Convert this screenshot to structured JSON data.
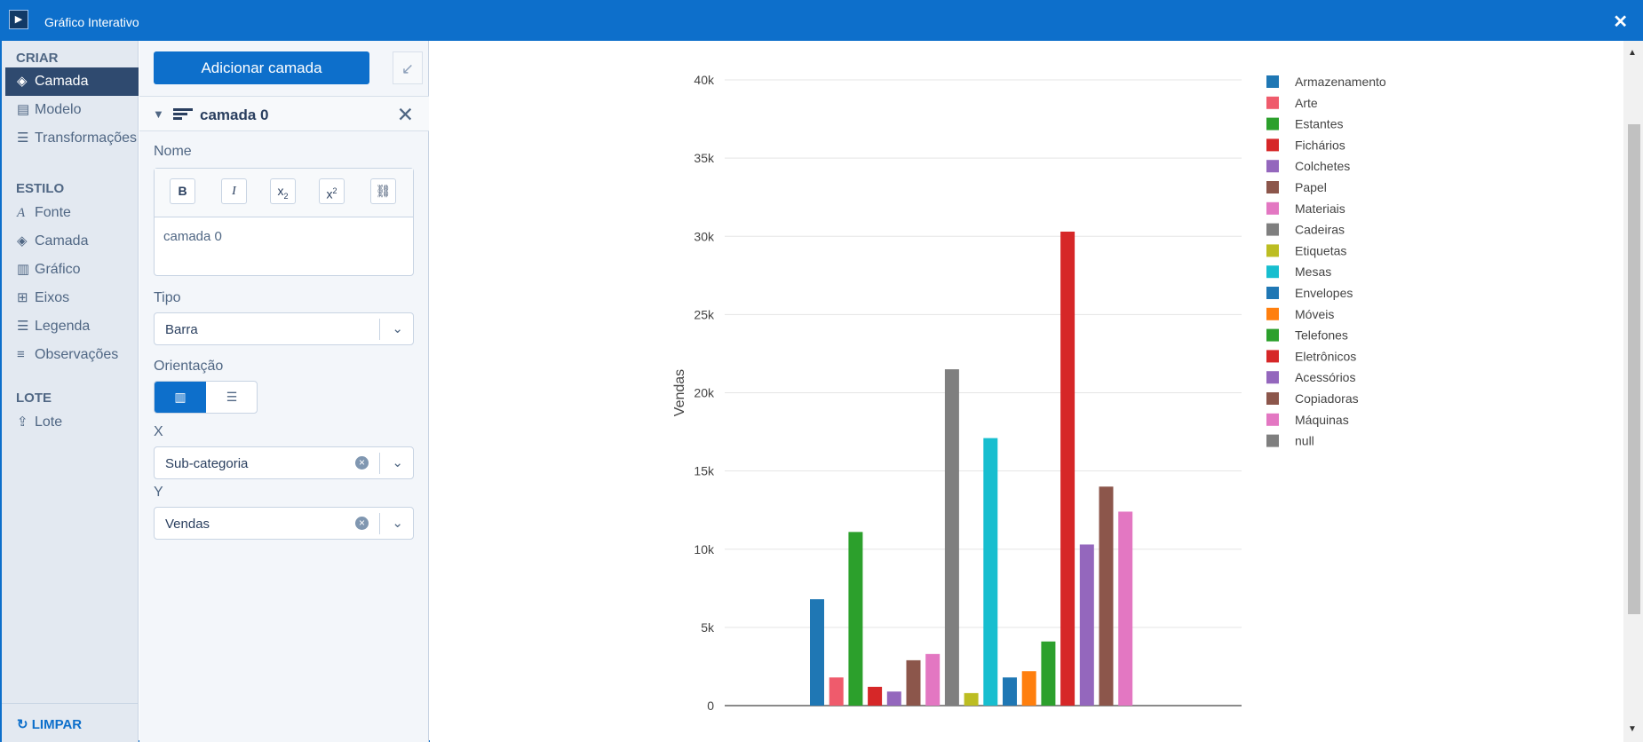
{
  "window": {
    "title": "Gráfico Interativo"
  },
  "sidebar": {
    "sections": [
      {
        "title": "CRIAR",
        "items": [
          {
            "label": "Camada",
            "icon": "layers-icon",
            "active": true
          },
          {
            "label": "Modelo",
            "icon": "document-icon",
            "active": false
          },
          {
            "label": "Transformações",
            "icon": "list-icon",
            "active": false
          }
        ]
      },
      {
        "title": "ESTILO",
        "items": [
          {
            "label": "Fonte",
            "icon": "font-icon",
            "active": false
          },
          {
            "label": "Camada",
            "icon": "layers-icon",
            "active": false
          },
          {
            "label": "Gráfico",
            "icon": "bar-chart-icon",
            "active": false
          },
          {
            "label": "Eixos",
            "icon": "axes-icon",
            "active": false
          },
          {
            "label": "Legenda",
            "icon": "list-icon",
            "active": false
          },
          {
            "label": "Observações",
            "icon": "notes-icon",
            "active": false
          }
        ]
      },
      {
        "title": "LOTE",
        "items": [
          {
            "label": "Lote",
            "icon": "upload-icon",
            "active": false
          }
        ]
      }
    ],
    "clear_label": "LIMPAR"
  },
  "panel": {
    "add_layer_label": "Adicionar camada",
    "layer_name": "camada 0",
    "name_label": "Nome",
    "name_value": "camada 0",
    "type_label": "Tipo",
    "type_value": "Barra",
    "orientation_label": "Orientação",
    "x_label": "X",
    "x_value": "Sub-categoria",
    "y_label": "Y",
    "y_value": "Vendas",
    "toolbar": {
      "bold": "B",
      "italic": "I"
    }
  },
  "chart_data": {
    "type": "bar",
    "ylabel": "Vendas",
    "ylim": [
      0,
      40000
    ],
    "yticks": [
      0,
      5000,
      10000,
      15000,
      20000,
      25000,
      30000,
      35000,
      40000
    ],
    "ytick_labels": [
      "0",
      "5k",
      "10k",
      "15k",
      "20k",
      "25k",
      "30k",
      "35k",
      "40k"
    ],
    "legend_position": "right",
    "grid": true,
    "series": [
      {
        "name": "Armazenamento",
        "value": 6800,
        "color": "#1f77b4"
      },
      {
        "name": "Arte",
        "value": 1800,
        "color": "#ef5b6c"
      },
      {
        "name": "Estantes",
        "value": 11100,
        "color": "#2ca02c"
      },
      {
        "name": "Fichários",
        "value": 1200,
        "color": "#d62728"
      },
      {
        "name": "Colchetes",
        "value": 900,
        "color": "#9467bd"
      },
      {
        "name": "Papel",
        "value": 2900,
        "color": "#8c564b"
      },
      {
        "name": "Materiais",
        "value": 3300,
        "color": "#e377c2"
      },
      {
        "name": "Cadeiras",
        "value": 21500,
        "color": "#7f7f7f"
      },
      {
        "name": "Etiquetas",
        "value": 800,
        "color": "#bcbd22"
      },
      {
        "name": "Mesas",
        "value": 17100,
        "color": "#17becf"
      },
      {
        "name": "Envelopes",
        "value": 1800,
        "color": "#1f77b4"
      },
      {
        "name": "Móveis",
        "value": 2200,
        "color": "#ff7f0e"
      },
      {
        "name": "Telefones",
        "value": 4100,
        "color": "#2ca02c"
      },
      {
        "name": "Eletrônicos",
        "value": 30300,
        "color": "#d62728"
      },
      {
        "name": "Acessórios",
        "value": 10300,
        "color": "#9467bd"
      },
      {
        "name": "Copiadoras",
        "value": 14000,
        "color": "#8c564b"
      },
      {
        "name": "Máquinas",
        "value": 12400,
        "color": "#e377c2"
      },
      {
        "name": "null",
        "value": 0,
        "color": "#7f7f7f"
      }
    ]
  }
}
